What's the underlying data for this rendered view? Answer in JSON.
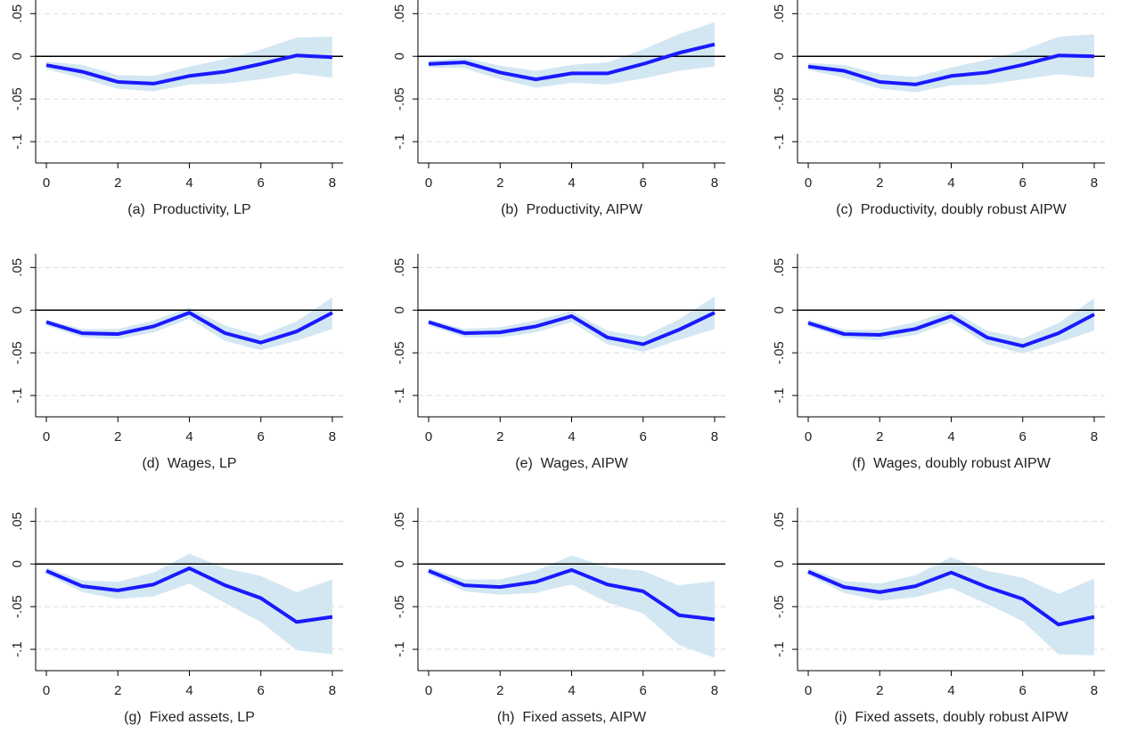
{
  "chart_data": [
    {
      "type": "line",
      "title": "(a)  Productivity, LP",
      "x": [
        0,
        1,
        2,
        3,
        4,
        5,
        6,
        7,
        8
      ],
      "values": [
        -0.0104,
        -0.018,
        -0.03,
        -0.032,
        -0.023,
        -0.018,
        -0.009,
        0.001,
        -0.001
      ],
      "ci_upper": [
        -0.006,
        -0.01,
        -0.022,
        -0.023,
        -0.012,
        -0.003,
        0.008,
        0.022,
        0.023
      ],
      "ci_lower": [
        -0.015,
        -0.026,
        -0.038,
        -0.041,
        -0.033,
        -0.032,
        -0.027,
        -0.02,
        -0.025
      ],
      "color": "#1a1aff",
      "ci_color": "#d3e7f3",
      "xlim": [
        -0.3,
        8.3
      ],
      "xticks": [
        0,
        2,
        4,
        6,
        8
      ],
      "ylim": [
        -0.125,
        0.066
      ],
      "yticks": [
        {
          "value": 0.05,
          "label": ".05"
        },
        0,
        {
          "value": -0.05,
          "label": "-.05"
        },
        {
          "value": -0.1,
          "label": "-.1"
        }
      ],
      "grid": true,
      "zero_line": true
    },
    {
      "type": "line",
      "title": "(b)  Productivity, AIPW",
      "x": [
        0,
        1,
        2,
        3,
        4,
        5,
        6,
        7,
        8
      ],
      "values": [
        -0.009,
        -0.007,
        -0.019,
        -0.027,
        -0.02,
        -0.02,
        -0.009,
        0.004,
        0.014
      ],
      "ci_upper": [
        -0.005,
        -0.002,
        -0.011,
        -0.017,
        -0.01,
        -0.007,
        0.008,
        0.026,
        0.04
      ],
      "ci_lower": [
        -0.013,
        -0.014,
        -0.027,
        -0.037,
        -0.031,
        -0.033,
        -0.026,
        -0.017,
        -0.012
      ],
      "color": "#1a1aff",
      "ci_color": "#d3e7f3",
      "xlim": [
        -0.3,
        8.3
      ],
      "xticks": [
        0,
        2,
        4,
        6,
        8
      ],
      "ylim": [
        -0.125,
        0.066
      ],
      "yticks": [
        {
          "value": 0.05,
          "label": ".05"
        },
        0,
        {
          "value": -0.05,
          "label": "-.05"
        },
        {
          "value": -0.1,
          "label": "-.1"
        }
      ],
      "grid": true,
      "zero_line": true
    },
    {
      "type": "line",
      "title": "(c)  Productivity, doubly robust AIPW",
      "x": [
        0,
        1,
        2,
        3,
        4,
        5,
        6,
        7,
        8
      ],
      "values": [
        -0.012,
        -0.017,
        -0.03,
        -0.033,
        -0.023,
        -0.019,
        -0.01,
        0.001,
        0.0
      ],
      "ci_upper": [
        -0.008,
        -0.01,
        -0.021,
        -0.024,
        -0.013,
        -0.004,
        0.007,
        0.023,
        0.026
      ],
      "ci_lower": [
        -0.016,
        -0.025,
        -0.038,
        -0.042,
        -0.034,
        -0.033,
        -0.027,
        -0.021,
        -0.025
      ],
      "color": "#1a1aff",
      "ci_color": "#d3e7f3",
      "xlim": [
        -0.3,
        8.3
      ],
      "xticks": [
        0,
        2,
        4,
        6,
        8
      ],
      "ylim": [
        -0.125,
        0.066
      ],
      "yticks": [
        {
          "value": 0.05,
          "label": ".05"
        },
        0,
        {
          "value": -0.05,
          "label": "-.05"
        },
        {
          "value": -0.1,
          "label": "-.1"
        }
      ],
      "grid": true,
      "zero_line": true
    },
    {
      "type": "line",
      "title": "(d)  Wages, LP",
      "x": [
        0,
        1,
        2,
        3,
        4,
        5,
        6,
        7,
        8
      ],
      "values": [
        -0.014,
        -0.027,
        -0.028,
        -0.019,
        -0.003,
        -0.027,
        -0.038,
        -0.025,
        -0.003
      ],
      "ci_upper": [
        -0.011,
        -0.022,
        -0.022,
        -0.012,
        0.003,
        -0.018,
        -0.03,
        -0.013,
        0.015
      ],
      "ci_lower": [
        -0.018,
        -0.032,
        -0.034,
        -0.026,
        -0.01,
        -0.036,
        -0.047,
        -0.036,
        -0.022
      ],
      "color": "#1a1aff",
      "ci_color": "#d3e7f3",
      "xlim": [
        -0.3,
        8.3
      ],
      "xticks": [
        0,
        2,
        4,
        6,
        8
      ],
      "ylim": [
        -0.125,
        0.066
      ],
      "yticks": [
        {
          "value": 0.05,
          "label": ".05"
        },
        0,
        {
          "value": -0.05,
          "label": "-.05"
        },
        {
          "value": -0.1,
          "label": "-.1"
        }
      ],
      "grid": true,
      "zero_line": true
    },
    {
      "type": "line",
      "title": "(e)  Wages, AIPW",
      "x": [
        0,
        1,
        2,
        3,
        4,
        5,
        6,
        7,
        8
      ],
      "values": [
        -0.014,
        -0.027,
        -0.026,
        -0.019,
        -0.007,
        -0.032,
        -0.04,
        -0.023,
        -0.003
      ],
      "ci_upper": [
        -0.011,
        -0.022,
        -0.02,
        -0.012,
        -0.001,
        -0.024,
        -0.031,
        -0.011,
        0.016
      ],
      "ci_lower": [
        -0.018,
        -0.032,
        -0.032,
        -0.026,
        -0.014,
        -0.04,
        -0.049,
        -0.035,
        -0.022
      ],
      "color": "#1a1aff",
      "ci_color": "#d3e7f3",
      "xlim": [
        -0.3,
        8.3
      ],
      "xticks": [
        0,
        2,
        4,
        6,
        8
      ],
      "ylim": [
        -0.125,
        0.066
      ],
      "yticks": [
        {
          "value": 0.05,
          "label": ".05"
        },
        0,
        {
          "value": -0.05,
          "label": "-.05"
        },
        {
          "value": -0.1,
          "label": "-.1"
        }
      ],
      "grid": true,
      "zero_line": true
    },
    {
      "type": "line",
      "title": "(f)  Wages, doubly robust AIPW",
      "x": [
        0,
        1,
        2,
        3,
        4,
        5,
        6,
        7,
        8
      ],
      "values": [
        -0.015,
        -0.028,
        -0.029,
        -0.022,
        -0.007,
        -0.032,
        -0.042,
        -0.027,
        -0.005
      ],
      "ci_upper": [
        -0.011,
        -0.023,
        -0.023,
        -0.014,
        0.0,
        -0.024,
        -0.033,
        -0.015,
        0.014
      ],
      "ci_lower": [
        -0.019,
        -0.033,
        -0.035,
        -0.029,
        -0.014,
        -0.04,
        -0.051,
        -0.038,
        -0.024
      ],
      "color": "#1a1aff",
      "ci_color": "#d3e7f3",
      "xlim": [
        -0.3,
        8.3
      ],
      "xticks": [
        0,
        2,
        4,
        6,
        8
      ],
      "ylim": [
        -0.125,
        0.066
      ],
      "yticks": [
        {
          "value": 0.05,
          "label": ".05"
        },
        0,
        {
          "value": -0.05,
          "label": "-.05"
        },
        {
          "value": -0.1,
          "label": "-.1"
        }
      ],
      "grid": true,
      "zero_line": true
    },
    {
      "type": "line",
      "title": "(g)  Fixed assets, LP",
      "x": [
        0,
        1,
        2,
        3,
        4,
        5,
        6,
        7,
        8
      ],
      "values": [
        -0.008,
        -0.026,
        -0.031,
        -0.024,
        -0.005,
        -0.025,
        -0.04,
        -0.068,
        -0.062
      ],
      "ci_upper": [
        -0.004,
        -0.019,
        -0.021,
        -0.01,
        0.012,
        -0.005,
        -0.014,
        -0.033,
        -0.018
      ],
      "ci_lower": [
        -0.012,
        -0.033,
        -0.041,
        -0.038,
        -0.023,
        -0.046,
        -0.068,
        -0.101,
        -0.106
      ],
      "color": "#1a1aff",
      "ci_color": "#d3e7f3",
      "xlim": [
        -0.3,
        8.3
      ],
      "xticks": [
        0,
        2,
        4,
        6,
        8
      ],
      "ylim": [
        -0.125,
        0.066
      ],
      "yticks": [
        {
          "value": 0.05,
          "label": ".05"
        },
        0,
        {
          "value": -0.05,
          "label": "-.05"
        },
        {
          "value": -0.1,
          "label": "-.1"
        }
      ],
      "grid": true,
      "zero_line": true
    },
    {
      "type": "line",
      "title": "(h)  Fixed assets, AIPW",
      "x": [
        0,
        1,
        2,
        3,
        4,
        5,
        6,
        7,
        8
      ],
      "values": [
        -0.008,
        -0.025,
        -0.027,
        -0.021,
        -0.007,
        -0.024,
        -0.032,
        -0.06,
        -0.065
      ],
      "ci_upper": [
        -0.004,
        -0.018,
        -0.018,
        -0.008,
        0.01,
        -0.004,
        -0.008,
        -0.025,
        -0.02
      ],
      "ci_lower": [
        -0.012,
        -0.032,
        -0.036,
        -0.034,
        -0.024,
        -0.045,
        -0.058,
        -0.095,
        -0.11
      ],
      "color": "#1a1aff",
      "ci_color": "#d3e7f3",
      "xlim": [
        -0.3,
        8.3
      ],
      "xticks": [
        0,
        2,
        4,
        6,
        8
      ],
      "ylim": [
        -0.125,
        0.066
      ],
      "yticks": [
        {
          "value": 0.05,
          "label": ".05"
        },
        0,
        {
          "value": -0.05,
          "label": "-.05"
        },
        {
          "value": -0.1,
          "label": "-.1"
        }
      ],
      "grid": true,
      "zero_line": true
    },
    {
      "type": "line",
      "title": "(i)  Fixed assets, doubly robust AIPW",
      "x": [
        0,
        1,
        2,
        3,
        4,
        5,
        6,
        7,
        8
      ],
      "values": [
        -0.009,
        -0.027,
        -0.033,
        -0.026,
        -0.01,
        -0.027,
        -0.041,
        -0.071,
        -0.062
      ],
      "ci_upper": [
        -0.005,
        -0.02,
        -0.023,
        -0.013,
        0.008,
        -0.008,
        -0.016,
        -0.035,
        -0.017
      ],
      "ci_lower": [
        -0.013,
        -0.034,
        -0.043,
        -0.039,
        -0.028,
        -0.047,
        -0.067,
        -0.106,
        -0.107
      ],
      "color": "#1a1aff",
      "ci_color": "#d3e7f3",
      "xlim": [
        -0.3,
        8.3
      ],
      "xticks": [
        0,
        2,
        4,
        6,
        8
      ],
      "ylim": [
        -0.125,
        0.066
      ],
      "yticks": [
        {
          "value": 0.05,
          "label": ".05"
        },
        0,
        {
          "value": -0.05,
          "label": "-.05"
        },
        {
          "value": -0.1,
          "label": "-.1"
        }
      ],
      "grid": true,
      "zero_line": true
    }
  ]
}
